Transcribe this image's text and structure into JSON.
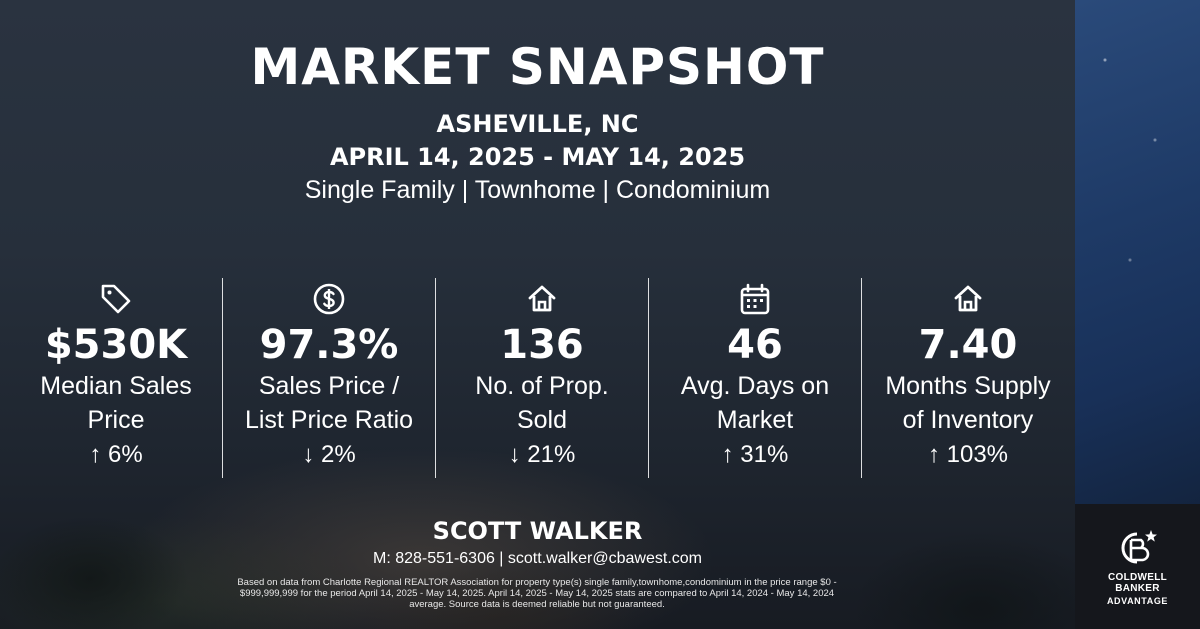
{
  "header": {
    "title": "MARKET SNAPSHOT",
    "location": "ASHEVILLE, NC",
    "date_range": "APRIL 14, 2025 - MAY 14, 2025",
    "property_types": "Single Family | Townhome | Condominium"
  },
  "stats": [
    {
      "icon": "price-tag-icon",
      "value": "$530K",
      "label_line1": "Median Sales",
      "label_line2": "Price",
      "change": "↑ 6%"
    },
    {
      "icon": "dollar-circle-icon",
      "value": "97.3%",
      "label_line1": "Sales Price /",
      "label_line2": "List Price Ratio",
      "change": "↓ 2%"
    },
    {
      "icon": "house-icon",
      "value": "136",
      "label_line1": "No. of Prop.",
      "label_line2": "Sold",
      "change": "↓ 21%"
    },
    {
      "icon": "calendar-icon",
      "value": "46",
      "label_line1": "Avg. Days on",
      "label_line2": "Market",
      "change": "↑ 31%"
    },
    {
      "icon": "house-icon",
      "value": "7.40",
      "label_line1": "Months Supply",
      "label_line2": "of Inventory",
      "change": "↑ 103%"
    }
  ],
  "agent": {
    "name": "SCOTT WALKER",
    "contact": "M: 828-551-6306 | scott.walker@cbawest.com"
  },
  "disclaimer": "Based on data from Charlotte Regional REALTOR Association for property type(s) single family,townhome,condominium in the price range $0 - $999,999,999 for the period April 14, 2025 - May 14, 2025. April 14, 2025 - May 14, 2025 stats are compared to April 14, 2024 - May 14, 2024 average. Source data is deemed reliable but not guaranteed.",
  "brand": {
    "line1": "COLDWELL",
    "line2": "BANKER",
    "line3": "ADVANTAGE",
    "logo_letters": "CB"
  },
  "colors": {
    "text": "#ffffff",
    "background": "#262f3b",
    "sky_panel": "#1e3a66",
    "logo_box": "#15171c"
  }
}
